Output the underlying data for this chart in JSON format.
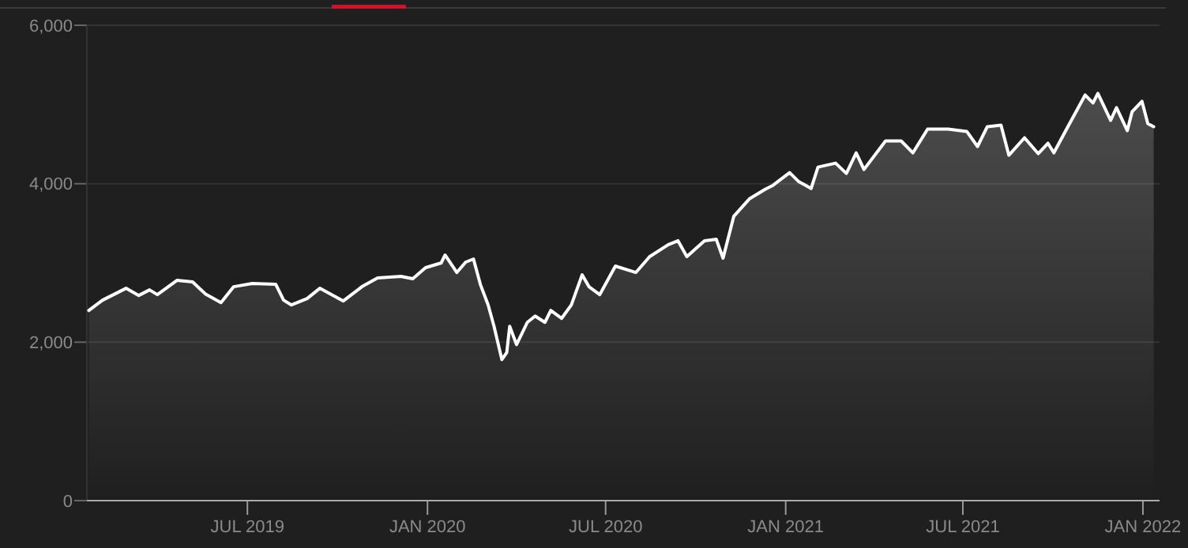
{
  "chart_data": {
    "type": "area",
    "x": [
      "2019-01-20",
      "2019-02-03",
      "2019-02-27",
      "2019-03-12",
      "2019-03-23",
      "2019-03-31",
      "2019-04-20",
      "2019-05-06",
      "2019-05-19",
      "2019-06-04",
      "2019-06-17",
      "2019-07-06",
      "2019-07-30",
      "2019-08-07",
      "2019-08-15",
      "2019-08-31",
      "2019-09-13",
      "2019-10-07",
      "2019-10-26",
      "2019-11-11",
      "2019-12-05",
      "2019-12-17",
      "2019-12-30",
      "2020-01-15",
      "2020-01-19",
      "2020-01-31",
      "2020-02-09",
      "2020-02-17",
      "2020-02-24",
      "2020-03-03",
      "2020-03-09",
      "2020-03-17",
      "2020-03-22",
      "2020-03-25",
      "2020-04-01",
      "2020-04-12",
      "2020-04-20",
      "2020-04-30",
      "2020-05-06",
      "2020-05-17",
      "2020-05-27",
      "2020-06-07",
      "2020-06-14",
      "2020-06-25",
      "2020-07-11",
      "2020-08-01",
      "2020-08-15",
      "2020-09-03",
      "2020-09-13",
      "2020-09-22",
      "2020-10-10",
      "2020-10-22",
      "2020-10-29",
      "2020-11-09",
      "2020-11-25",
      "2020-12-11",
      "2020-12-19",
      "2021-01-05",
      "2021-01-14",
      "2021-01-27",
      "2021-02-03",
      "2021-02-21",
      "2021-03-04",
      "2021-03-14",
      "2021-03-22",
      "2021-04-13",
      "2021-04-29",
      "2021-05-11",
      "2021-05-26",
      "2021-06-16",
      "2021-07-05",
      "2021-07-16",
      "2021-07-26",
      "2021-08-09",
      "2021-08-17",
      "2021-09-02",
      "2021-09-16",
      "2021-09-26",
      "2021-10-02",
      "2021-10-15",
      "2021-11-03",
      "2021-11-11",
      "2021-11-16",
      "2021-11-29",
      "2021-12-05",
      "2021-12-16",
      "2021-12-21",
      "2021-12-31",
      "2022-01-06",
      "2022-01-12"
    ],
    "series": [
      {
        "color": "#ffffff",
        "values": [
          2400,
          2530,
          2680,
          2590,
          2660,
          2600,
          2780,
          2760,
          2610,
          2500,
          2700,
          2740,
          2730,
          2530,
          2470,
          2550,
          2680,
          2520,
          2700,
          2810,
          2830,
          2800,
          2940,
          3000,
          3100,
          2880,
          3010,
          3050,
          2730,
          2470,
          2200,
          1780,
          1870,
          2200,
          1970,
          2250,
          2330,
          2250,
          2400,
          2300,
          2470,
          2850,
          2700,
          2600,
          2960,
          2880,
          3080,
          3230,
          3280,
          3080,
          3280,
          3300,
          3060,
          3590,
          3810,
          3930,
          3980,
          4140,
          4030,
          3940,
          4210,
          4260,
          4130,
          4390,
          4180,
          4540,
          4540,
          4390,
          4690,
          4690,
          4660,
          4470,
          4720,
          4740,
          4360,
          4580,
          4380,
          4510,
          4390,
          4690,
          5120,
          5020,
          5140,
          4800,
          4960,
          4670,
          4910,
          5040,
          4760,
          4720
        ]
      }
    ],
    "xlim": [
      "2019-01-18",
      "2022-01-18"
    ],
    "xticks": [
      {
        "value": "2019-07-01",
        "label": "JUL 2019"
      },
      {
        "value": "2020-01-01",
        "label": "JAN 2020"
      },
      {
        "value": "2020-07-01",
        "label": "JUL 2020"
      },
      {
        "value": "2021-01-01",
        "label": "JAN 2021"
      },
      {
        "value": "2021-07-01",
        "label": "JUL 2021"
      },
      {
        "value": "2022-01-01",
        "label": "JAN 2022"
      }
    ],
    "ylim": [
      0,
      6000
    ],
    "yticks": [
      0,
      {
        "value": 2000,
        "label": "2,000"
      },
      {
        "value": 4000,
        "label": "4,000"
      },
      {
        "value": 6000,
        "label": "6,000"
      }
    ],
    "grid": "y"
  }
}
